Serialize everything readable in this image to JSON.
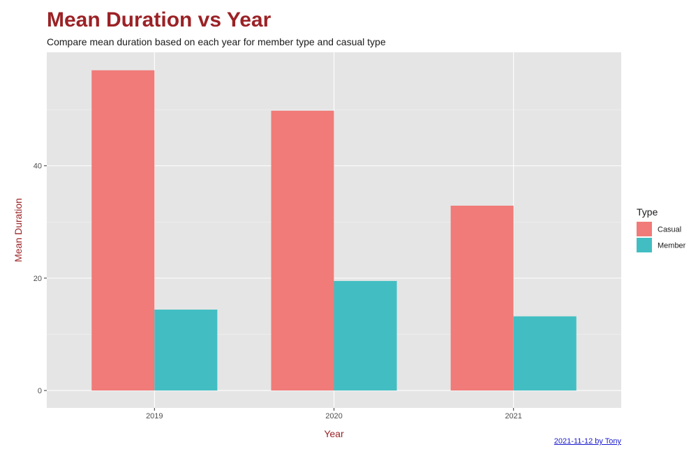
{
  "title": "Mean Duration vs Year",
  "subtitle": "Compare mean duration based on each year for member type and casual type",
  "caption": "2021-11-12 by Tony",
  "colors": {
    "casual": "#f07b78",
    "member": "#42bec3",
    "title": "#9b2226",
    "panel": "#e5e5e5"
  },
  "chart_data": {
    "type": "bar",
    "categories": [
      "2019",
      "2020",
      "2021"
    ],
    "series": [
      {
        "name": "Casual",
        "values": [
          57.0,
          49.8,
          32.9
        ]
      },
      {
        "name": "Member",
        "values": [
          14.4,
          19.5,
          13.2
        ]
      }
    ],
    "xlabel": "Year",
    "ylabel": "Mean Duration",
    "ylim": [
      -3.1,
      60.2
    ],
    "yticks": [
      0,
      20,
      40
    ],
    "legend_title": "Type",
    "legend_position": "right",
    "grid": true
  }
}
